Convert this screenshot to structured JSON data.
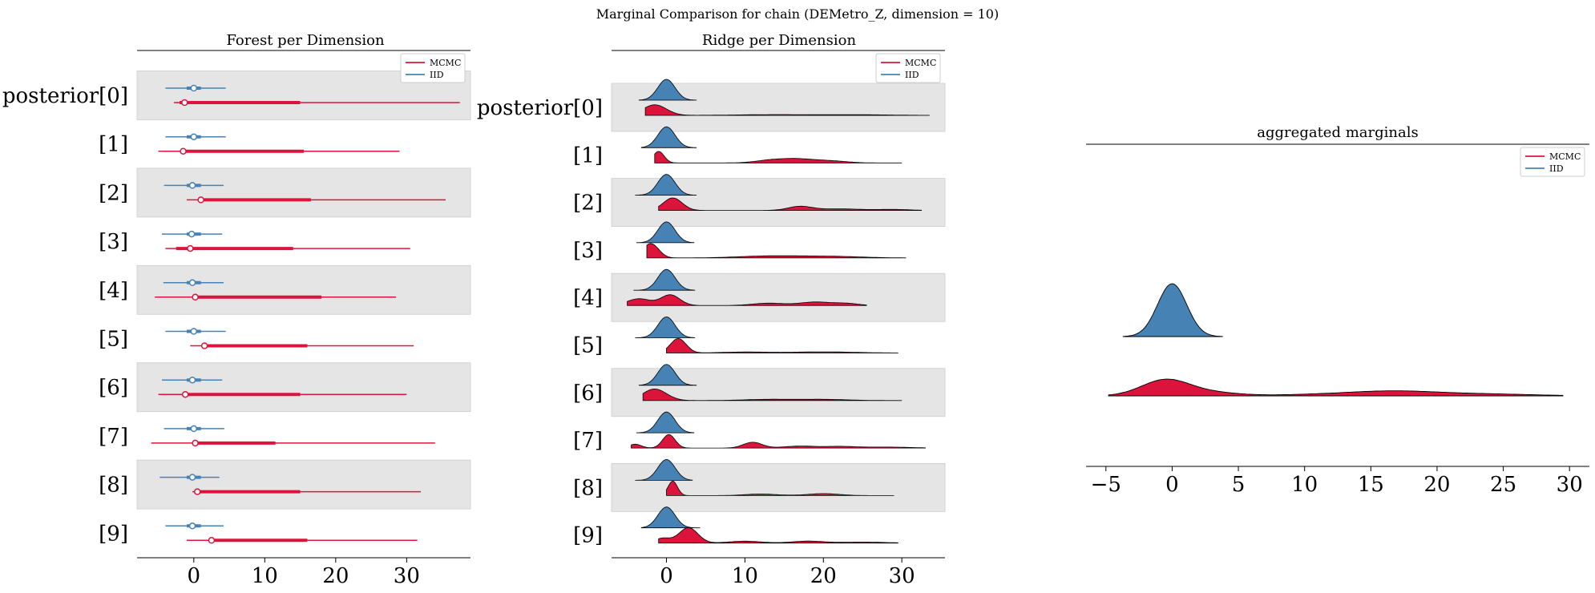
{
  "figure": {
    "title": "Marginal Comparison for chain (DEMetro_Z, dimension = 10)"
  },
  "colors": {
    "mcmc": "#dc143c",
    "iid": "#4682b4",
    "band": "#e5e5e5"
  },
  "chart_data": [
    {
      "type": "forest",
      "title": "Forest per Dimension",
      "xlim": [
        -8,
        39
      ],
      "xticks": [
        0,
        10,
        20,
        30
      ],
      "legend": {
        "placement": "top-right",
        "entries": [
          "MCMC",
          "IID"
        ]
      },
      "rows": [
        {
          "label": "posterior[0]",
          "iid": {
            "hdi94": [
              -4,
              4.5
            ],
            "iqr": [
              -1,
              1
            ],
            "median": 0
          },
          "mcmc": {
            "hdi94": [
              -2.8,
              37.5
            ],
            "iqr": [
              -2,
              15
            ],
            "median": -1.3
          }
        },
        {
          "label": "[1]",
          "iid": {
            "hdi94": [
              -4,
              4.5
            ],
            "iqr": [
              -1,
              1
            ],
            "median": 0
          },
          "mcmc": {
            "hdi94": [
              -5,
              29
            ],
            "iqr": [
              -1.5,
              15.5
            ],
            "median": -1.5
          }
        },
        {
          "label": "[2]",
          "iid": {
            "hdi94": [
              -4.2,
              4.2
            ],
            "iqr": [
              -1,
              1
            ],
            "median": -0.2
          },
          "mcmc": {
            "hdi94": [
              -1,
              35.5
            ],
            "iqr": [
              1,
              16.5
            ],
            "median": 1
          }
        },
        {
          "label": "[3]",
          "iid": {
            "hdi94": [
              -4.5,
              4
            ],
            "iqr": [
              -1,
              1
            ],
            "median": -0.3
          },
          "mcmc": {
            "hdi94": [
              -4,
              30.5
            ],
            "iqr": [
              -2.5,
              14
            ],
            "median": -0.5
          }
        },
        {
          "label": "[4]",
          "iid": {
            "hdi94": [
              -4.3,
              4.2
            ],
            "iqr": [
              -1,
              1
            ],
            "median": -0.2
          },
          "mcmc": {
            "hdi94": [
              -5.5,
              28.5
            ],
            "iqr": [
              0.2,
              18
            ],
            "median": 0.2
          }
        },
        {
          "label": "[5]",
          "iid": {
            "hdi94": [
              -4,
              4.5
            ],
            "iqr": [
              -1,
              1
            ],
            "median": 0
          },
          "mcmc": {
            "hdi94": [
              -0.5,
              31
            ],
            "iqr": [
              1.5,
              16
            ],
            "median": 1.5
          }
        },
        {
          "label": "[6]",
          "iid": {
            "hdi94": [
              -4.5,
              4
            ],
            "iqr": [
              -1,
              1
            ],
            "median": -0.2
          },
          "mcmc": {
            "hdi94": [
              -5,
              30
            ],
            "iqr": [
              -1.5,
              15
            ],
            "median": -1.2
          }
        },
        {
          "label": "[7]",
          "iid": {
            "hdi94": [
              -4.2,
              4.3
            ],
            "iqr": [
              -1,
              1
            ],
            "median": 0
          },
          "mcmc": {
            "hdi94": [
              -6,
              34
            ],
            "iqr": [
              0.2,
              11.5
            ],
            "median": 0.2
          }
        },
        {
          "label": "[8]",
          "iid": {
            "hdi94": [
              -4.8,
              3.6
            ],
            "iqr": [
              -1,
              1
            ],
            "median": -0.2
          },
          "mcmc": {
            "hdi94": [
              -0.2,
              32
            ],
            "iqr": [
              0.5,
              15
            ],
            "median": 0.5
          }
        },
        {
          "label": "[9]",
          "iid": {
            "hdi94": [
              -4,
              4.2
            ],
            "iqr": [
              -1,
              1
            ],
            "median": -0.2
          },
          "mcmc": {
            "hdi94": [
              -1,
              31.5
            ],
            "iqr": [
              2.5,
              16
            ],
            "median": 2.5
          }
        }
      ]
    },
    {
      "type": "ridge",
      "title": "Ridge per Dimension",
      "xlim": [
        -7,
        35.5
      ],
      "xticks": [
        0,
        10,
        20,
        30
      ],
      "legend": {
        "placement": "top-right",
        "entries": [
          "MCMC",
          "IID"
        ]
      },
      "rows": [
        {
          "label": "posterior[0]",
          "iid": {
            "range": [
              -3.5,
              3.8
            ]
          },
          "mcmc": {
            "range": [
              -2.7,
              33.5
            ],
            "peaks": [
              [
                -1.5,
                1.5,
                0.55
              ],
              [
                14,
                5,
                0.04
              ],
              [
                25,
                4,
                0.03
              ]
            ]
          }
        },
        {
          "label": "[1]",
          "iid": {
            "range": [
              -3.2,
              3.8
            ]
          },
          "mcmc": {
            "range": [
              -1.5,
              30
            ],
            "peaks": [
              [
                -1,
                0.7,
                0.6
              ],
              [
                13.5,
                2,
                0.15
              ],
              [
                17,
                2,
                0.18
              ],
              [
                21,
                2,
                0.1
              ]
            ]
          }
        },
        {
          "label": "[2]",
          "iid": {
            "range": [
              -4,
              3.8
            ]
          },
          "mcmc": {
            "range": [
              -1,
              32.5
            ],
            "peaks": [
              [
                0.8,
                1.2,
                0.65
              ],
              [
                17,
                1.5,
                0.2
              ],
              [
                22,
                3,
                0.08
              ],
              [
                29,
                2,
                0.05
              ]
            ]
          }
        },
        {
          "label": "[3]",
          "iid": {
            "range": [
              -3.8,
              3.5
            ]
          },
          "mcmc": {
            "range": [
              -2.5,
              30.5
            ],
            "peaks": [
              [
                -2,
                1,
                0.75
              ],
              [
                13,
                4,
                0.1
              ],
              [
                21,
                4,
                0.08
              ]
            ]
          }
        },
        {
          "label": "[4]",
          "iid": {
            "range": [
              -4.2,
              3.6
            ]
          },
          "mcmc": {
            "range": [
              -5,
              25.5
            ],
            "peaks": [
              [
                -3.5,
                1.5,
                0.35
              ],
              [
                0.5,
                1.2,
                0.55
              ],
              [
                13,
                2,
                0.12
              ],
              [
                19,
                2,
                0.18
              ],
              [
                23,
                1.5,
                0.1
              ]
            ]
          }
        },
        {
          "label": "[5]",
          "iid": {
            "range": [
              -4,
              3.6
            ]
          },
          "mcmc": {
            "range": [
              0,
              29.5
            ],
            "peaks": [
              [
                1.5,
                1,
                0.75
              ],
              [
                10,
                3,
                0.05
              ],
              [
                20,
                4,
                0.06
              ]
            ]
          }
        },
        {
          "label": "[6]",
          "iid": {
            "range": [
              -3.5,
              3.8
            ]
          },
          "mcmc": {
            "range": [
              -3,
              30
            ],
            "peaks": [
              [
                -1.5,
                1.5,
                0.6
              ],
              [
                13,
                3,
                0.06
              ],
              [
                20,
                3,
                0.06
              ]
            ]
          }
        },
        {
          "label": "[7]",
          "iid": {
            "range": [
              -3.8,
              3.5
            ]
          },
          "mcmc": {
            "range": [
              -4.5,
              33
            ],
            "peaks": [
              [
                -4,
                0.8,
                0.2
              ],
              [
                0.3,
                0.8,
                0.7
              ],
              [
                11,
                1.2,
                0.3
              ],
              [
                17,
                2,
                0.1
              ],
              [
                22,
                2,
                0.08
              ],
              [
                28,
                3,
                0.05
              ]
            ]
          }
        },
        {
          "label": "[8]",
          "iid": {
            "range": [
              -4,
              3.3
            ]
          },
          "mcmc": {
            "range": [
              0,
              29
            ],
            "peaks": [
              [
                0.8,
                0.6,
                0.75
              ],
              [
                12,
                2,
                0.08
              ],
              [
                20,
                2,
                0.1
              ]
            ]
          }
        },
        {
          "label": "[9]",
          "iid": {
            "range": [
              -3.2,
              4.3
            ]
          },
          "mcmc": {
            "range": [
              -1,
              29.5
            ],
            "peaks": [
              [
                -0.5,
                1,
                0.25
              ],
              [
                2.8,
                1.2,
                0.8
              ],
              [
                10,
                2,
                0.1
              ],
              [
                18,
                2,
                0.1
              ],
              [
                25,
                3,
                0.05
              ]
            ]
          }
        }
      ]
    },
    {
      "type": "ridge-aggregate",
      "title": "aggregated marginals",
      "xlim": [
        -6.5,
        31.5
      ],
      "xticks": [
        -5,
        0,
        5,
        10,
        15,
        20,
        25,
        30
      ],
      "legend": {
        "placement": "top-right",
        "entries": [
          "MCMC",
          "IID"
        ]
      },
      "iid": {
        "range": [
          -3.7,
          3.8
        ]
      },
      "mcmc": {
        "range": [
          -4.8,
          29.5
        ],
        "peaks": [
          [
            -0.5,
            1.8,
            0.2
          ],
          [
            3,
            2,
            0.04
          ],
          [
            13,
            4,
            0.025
          ],
          [
            17,
            3,
            0.04
          ],
          [
            23,
            4,
            0.025
          ]
        ]
      }
    }
  ]
}
